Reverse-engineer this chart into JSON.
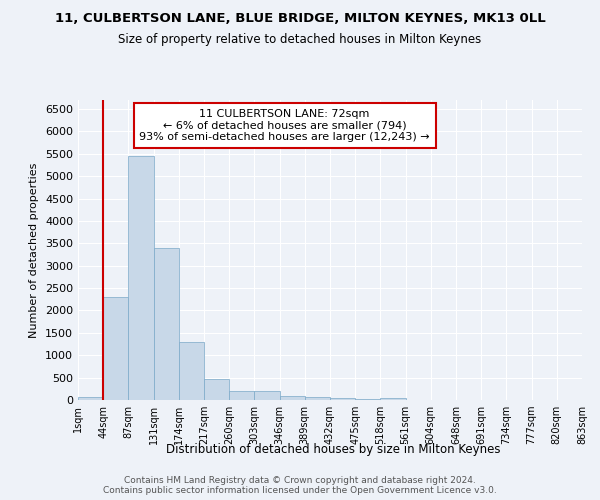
{
  "title1": "11, CULBERTSON LANE, BLUE BRIDGE, MILTON KEYNES, MK13 0LL",
  "title2": "Size of property relative to detached houses in Milton Keynes",
  "xlabel": "Distribution of detached houses by size in Milton Keynes",
  "ylabel": "Number of detached properties",
  "bin_labels": [
    "1sqm",
    "44sqm",
    "87sqm",
    "131sqm",
    "174sqm",
    "217sqm",
    "260sqm",
    "303sqm",
    "346sqm",
    "389sqm",
    "432sqm",
    "475sqm",
    "518sqm",
    "561sqm",
    "604sqm",
    "648sqm",
    "691sqm",
    "734sqm",
    "777sqm",
    "820sqm",
    "863sqm"
  ],
  "bar_values": [
    70,
    2300,
    5450,
    3400,
    1300,
    470,
    190,
    190,
    80,
    60,
    40,
    20,
    50,
    5,
    5,
    5,
    5,
    5,
    5,
    5
  ],
  "bar_color": "#c8d8e8",
  "bar_edge_color": "#7aa8c8",
  "vline_x": 1,
  "vline_color": "#cc0000",
  "ylim": [
    0,
    6700
  ],
  "yticks": [
    0,
    500,
    1000,
    1500,
    2000,
    2500,
    3000,
    3500,
    4000,
    4500,
    5000,
    5500,
    6000,
    6500
  ],
  "annotation_line1": "11 CULBERTSON LANE: 72sqm",
  "annotation_line2": "← 6% of detached houses are smaller (794)",
  "annotation_line3": "93% of semi-detached houses are larger (12,243) →",
  "annotation_box_color": "#cc0000",
  "bg_color": "#eef2f8",
  "footnote_line1": "Contains HM Land Registry data © Crown copyright and database right 2024.",
  "footnote_line2": "Contains public sector information licensed under the Open Government Licence v3.0."
}
